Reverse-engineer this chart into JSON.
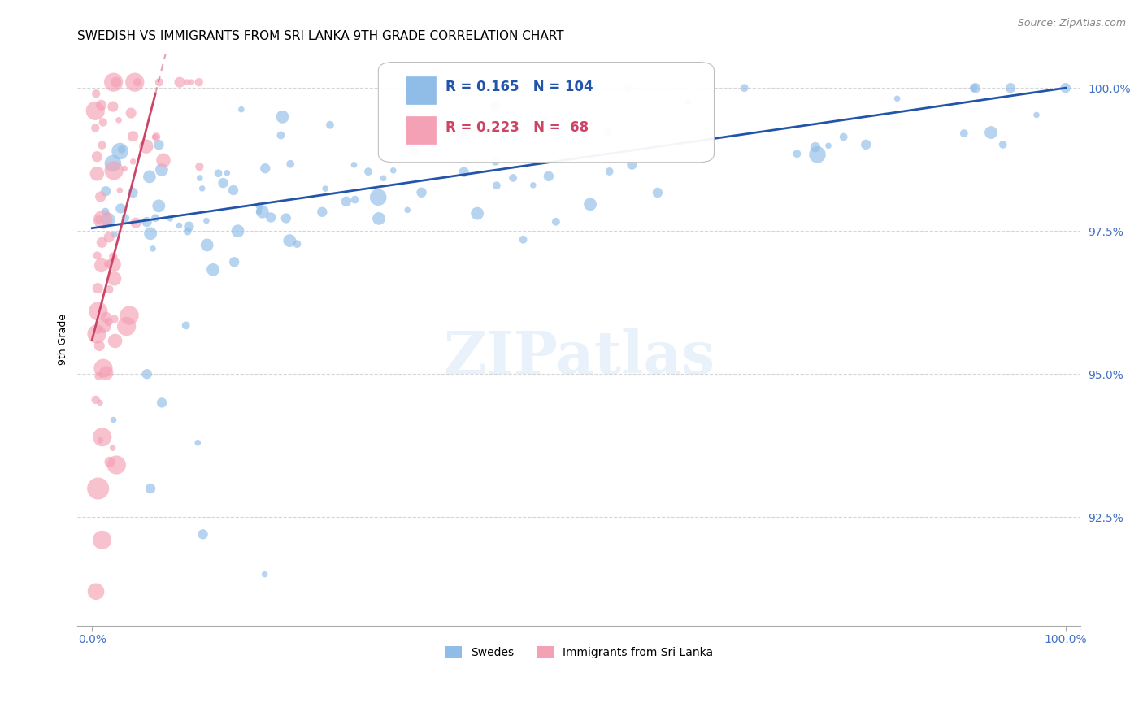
{
  "title": "SWEDISH VS IMMIGRANTS FROM SRI LANKA 9TH GRADE CORRELATION CHART",
  "source": "Source: ZipAtlas.com",
  "ylabel": "9th Grade",
  "legend_swedes": "Swedes",
  "legend_immigrants": "Immigrants from Sri Lanka",
  "R_swedes": 0.165,
  "N_swedes": 104,
  "R_immigrants": 0.223,
  "N_immigrants": 68,
  "color_swedes": "#90bde8",
  "color_immigrants": "#f4a0b5",
  "trend_color_swedes": "#2255aa",
  "trend_color_immigrants": "#cc4466",
  "background_color": "#ffffff",
  "grid_color": "#cccccc",
  "text_color": "#4472c4",
  "ytick_labels": [
    "100.0%",
    "97.5%",
    "95.0%",
    "92.5%"
  ],
  "ytick_values": [
    1.0,
    0.975,
    0.95,
    0.925
  ],
  "ylim": [
    0.906,
    1.006
  ],
  "xlim": [
    -0.015,
    1.015
  ],
  "sw_trend_x0": 0.0,
  "sw_trend_y0": 0.9755,
  "sw_trend_x1": 1.0,
  "sw_trend_y1": 1.0,
  "im_trend_x0": 0.0,
  "im_trend_y0": 0.956,
  "im_trend_x1": 0.065,
  "im_trend_y1": 0.999,
  "title_fontsize": 11,
  "axis_label_fontsize": 9,
  "tick_fontsize": 10,
  "legend_fontsize": 10,
  "annotation_fontsize": 12
}
